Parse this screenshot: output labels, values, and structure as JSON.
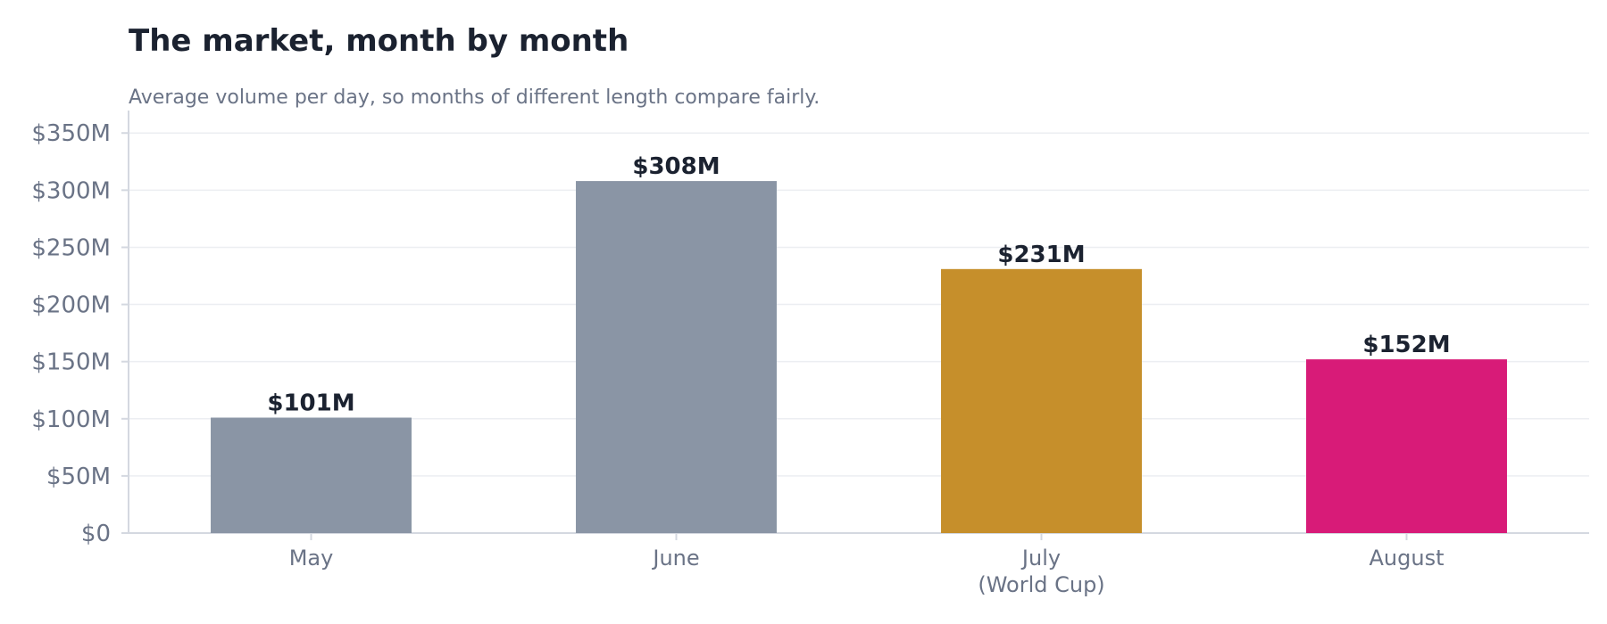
{
  "chart_data": {
    "type": "bar",
    "title": "The market, month by month",
    "subtitle": "Average volume per day, so months of different length compare fairly.",
    "xlabel": "",
    "ylabel": "",
    "categories": [
      [
        "May"
      ],
      [
        "June"
      ],
      [
        "July",
        "(World Cup)"
      ],
      [
        "August"
      ]
    ],
    "values": [
      101,
      308,
      231,
      152
    ],
    "data_labels": [
      "$101M",
      "$308M",
      "$231M",
      "$152M"
    ],
    "bar_colors": [
      "#8a95a5",
      "#8a95a5",
      "#c68f2b",
      "#d81b78"
    ],
    "ylim": [
      0,
      365
    ],
    "yticks": [
      0,
      50,
      100,
      150,
      200,
      250,
      300,
      350
    ],
    "ytick_labels": [
      "$0",
      "$50M",
      "$100M",
      "$150M",
      "$200M",
      "$250M",
      "$300M",
      "$350M"
    ],
    "grid": "horizontal",
    "legend": "none",
    "colors": {
      "title": "#1b2230",
      "muted_text": "#6a7386",
      "grid": "#eceef2",
      "axis": "#d4d8e0"
    }
  }
}
